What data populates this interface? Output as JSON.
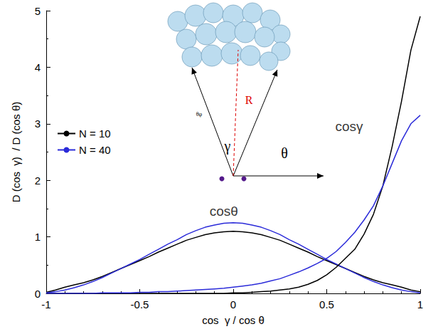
{
  "chart_data": {
    "type": "line",
    "x_label": "cos  γ / cos θ",
    "y_label": "D (cos  γ)  / D (cos θ)",
    "xlim": [
      -1,
      1
    ],
    "xticks": [
      -1,
      -0.5,
      0,
      0.5,
      1
    ],
    "ylim": [
      0,
      5
    ],
    "yticks": [
      0,
      1,
      2,
      3,
      4,
      5
    ],
    "grid": false,
    "legend": "left",
    "x": [
      -1,
      -0.95,
      -0.9,
      -0.85,
      -0.8,
      -0.75,
      -0.7,
      -0.65,
      -0.6,
      -0.55,
      -0.5,
      -0.45,
      -0.4,
      -0.35,
      -0.3,
      -0.25,
      -0.2,
      -0.15,
      -0.1,
      -0.05,
      0,
      0.05,
      0.1,
      0.15,
      0.2,
      0.25,
      0.3,
      0.35,
      0.4,
      0.45,
      0.5,
      0.55,
      0.6,
      0.65,
      0.7,
      0.75,
      0.8,
      0.85,
      0.9,
      0.95,
      1
    ],
    "series": [
      {
        "name": "N = 10",
        "color": "#000000",
        "line_style": "solid",
        "values": [
          0.02,
          0.06,
          0.11,
          0.15,
          0.19,
          0.24,
          0.3,
          0.37,
          0.44,
          0.51,
          0.58,
          0.65,
          0.73,
          0.8,
          0.87,
          0.94,
          0.99,
          1.04,
          1.07,
          1.09,
          1.1,
          1.09,
          1.07,
          1.04,
          0.99,
          0.94,
          0.87,
          0.8,
          0.73,
          0.65,
          0.58,
          0.51,
          0.44,
          0.37,
          0.3,
          0.24,
          0.19,
          0.15,
          0.11,
          0.06,
          0.03
        ]
      },
      {
        "name": "N = 40",
        "color": "#2b2bd9",
        "line_style": "solid",
        "values": [
          0.01,
          0.03,
          0.06,
          0.1,
          0.15,
          0.21,
          0.28,
          0.36,
          0.44,
          0.52,
          0.6,
          0.69,
          0.78,
          0.87,
          0.95,
          1.04,
          1.11,
          1.17,
          1.21,
          1.24,
          1.25,
          1.24,
          1.21,
          1.17,
          1.11,
          1.04,
          0.95,
          0.87,
          0.78,
          0.69,
          0.6,
          0.52,
          0.44,
          0.36,
          0.28,
          0.21,
          0.15,
          0.1,
          0.06,
          0.03,
          0.01
        ]
      },
      {
        "name": "N = 10",
        "color": "#000000",
        "line_style": "solid",
        "values": [
          0,
          0,
          0,
          0,
          0,
          0,
          0,
          0,
          0,
          0,
          0,
          0,
          0,
          0,
          0,
          0,
          0,
          0,
          0,
          0,
          0.01,
          0.01,
          0.02,
          0.03,
          0.04,
          0.06,
          0.08,
          0.11,
          0.16,
          0.23,
          0.33,
          0.46,
          0.62,
          0.78,
          1.05,
          1.4,
          1.9,
          2.6,
          3.4,
          4.3,
          4.9
        ]
      },
      {
        "name": "N = 40",
        "color": "#2b2bd9",
        "line_style": "solid",
        "values": [
          0,
          0,
          0,
          0,
          0,
          0,
          0.01,
          0.01,
          0.01,
          0.01,
          0.02,
          0.02,
          0.03,
          0.03,
          0.04,
          0.05,
          0.06,
          0.07,
          0.08,
          0.09,
          0.11,
          0.13,
          0.15,
          0.18,
          0.22,
          0.26,
          0.32,
          0.38,
          0.45,
          0.53,
          0.62,
          0.74,
          0.9,
          1.08,
          1.3,
          1.55,
          1.9,
          2.3,
          2.7,
          3.0,
          3.15
        ]
      }
    ],
    "annotations": [
      {
        "text": "cosθ",
        "x": -0.05,
        "y": 1.45
      },
      {
        "text": "cosγ",
        "x": 0.62,
        "y": 2.95
      }
    ],
    "inset": {
      "radius_label": "R",
      "cone_label": "γ",
      "angle_label": "θ",
      "side_label": "θφ"
    }
  }
}
